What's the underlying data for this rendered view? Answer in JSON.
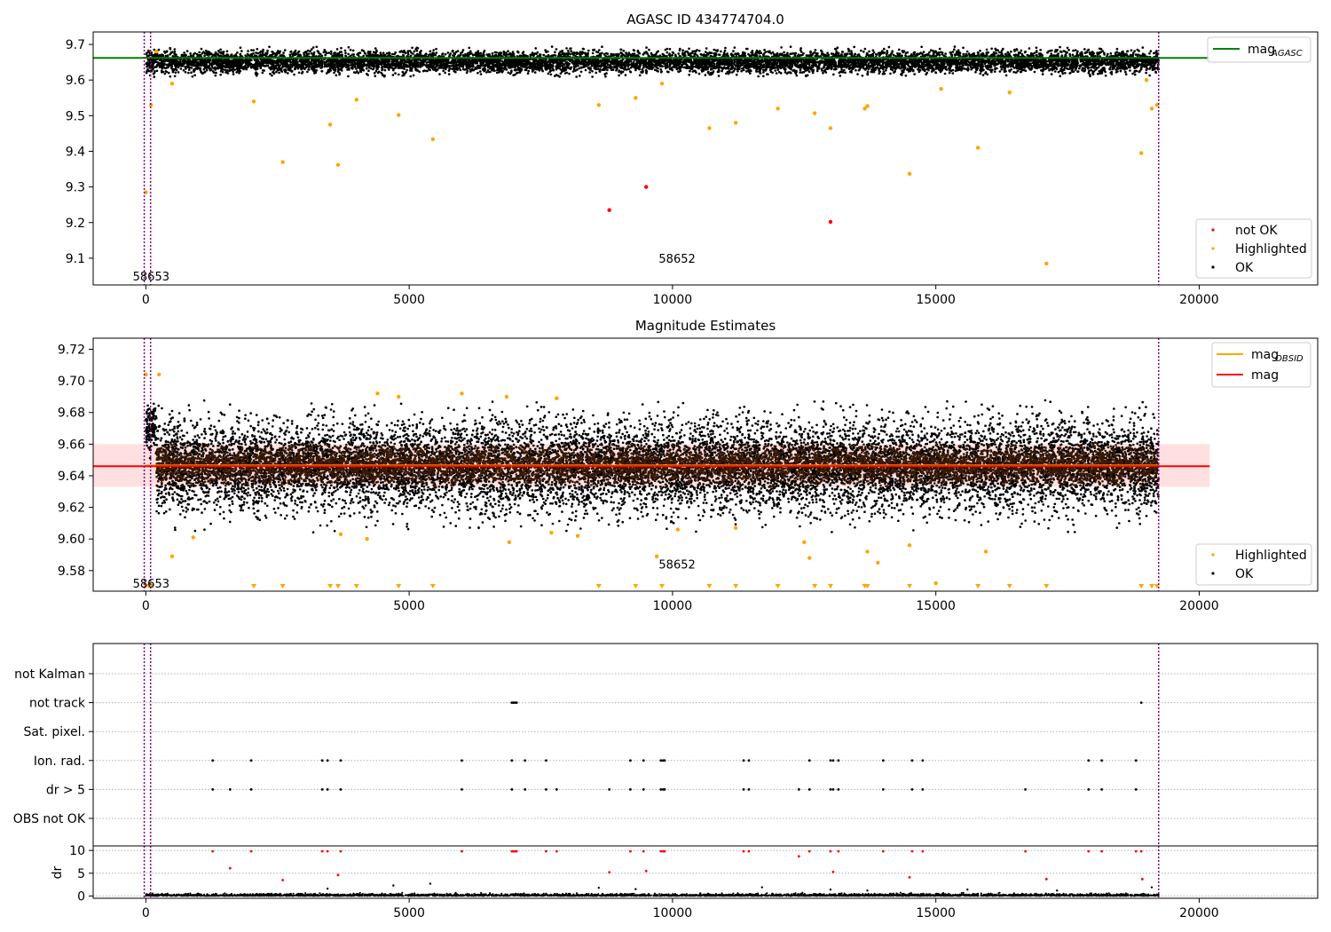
{
  "chart_data": [
    {
      "type": "scatter",
      "title": "AGASC ID 434774704.0",
      "xlim": [
        -1000,
        22250
      ],
      "ylim": [
        9.025,
        9.735
      ],
      "x_ticks": [
        0,
        5000,
        10000,
        15000,
        20000
      ],
      "y_ticks": [
        9.1,
        9.2,
        9.3,
        9.4,
        9.5,
        9.6,
        9.7
      ],
      "y_tick_decimals": 1,
      "vlines": [
        {
          "x": -30,
          "color": "#800080"
        },
        {
          "x": 90,
          "color": "#800080"
        },
        {
          "x": 19230,
          "color": "#800080"
        }
      ],
      "annotations": [
        {
          "text": "58653",
          "x": 50,
          "y": 9.05
        },
        {
          "text": "58652",
          "x": 9700,
          "y": 9.1
        }
      ],
      "reference_lines": [
        {
          "name": "mag",
          "subscript": "AGASC",
          "y": 9.662,
          "x_range": [
            -1000,
            20200
          ],
          "color": "#008000"
        }
      ],
      "band": null,
      "ok_band": {
        "x_range": [
          0,
          19230
        ],
        "y_range": [
          9.612,
          9.69
        ],
        "count": 9000,
        "color": "#000000"
      },
      "series": [
        {
          "name": "not OK",
          "color": "#ff0000",
          "points": [
            [
              8800,
              9.235
            ],
            [
              9500,
              9.3
            ],
            [
              13000,
              9.202
            ]
          ]
        },
        {
          "name": "Highlighted",
          "color": "#ffa500",
          "points": [
            [
              0,
              9.285
            ],
            [
              100,
              9.53
            ],
            [
              200,
              9.68
            ],
            [
              500,
              9.59
            ],
            [
              2050,
              9.54
            ],
            [
              2600,
              9.37
            ],
            [
              3500,
              9.475
            ],
            [
              3650,
              9.362
            ],
            [
              4000,
              9.545
            ],
            [
              4800,
              9.502
            ],
            [
              5450,
              9.434
            ],
            [
              8600,
              9.53
            ],
            [
              9300,
              9.55
            ],
            [
              9800,
              9.59
            ],
            [
              10700,
              9.465
            ],
            [
              11200,
              9.48
            ],
            [
              12000,
              9.52
            ],
            [
              12700,
              9.507
            ],
            [
              13000,
              9.465
            ],
            [
              13650,
              9.52
            ],
            [
              13700,
              9.527
            ],
            [
              14500,
              9.337
            ],
            [
              15100,
              9.575
            ],
            [
              15800,
              9.41
            ],
            [
              16400,
              9.565
            ],
            [
              17100,
              9.085
            ],
            [
              18900,
              9.395
            ],
            [
              19000,
              9.6
            ],
            [
              19100,
              9.52
            ],
            [
              19200,
              9.53
            ]
          ]
        },
        {
          "name": "OK",
          "color": "#000000",
          "points": []
        }
      ],
      "legend": {
        "placement": "lower-right",
        "entries": [
          "not OK",
          "Highlighted",
          "OK"
        ]
      },
      "legend_lines": {
        "placement": "upper-right"
      }
    },
    {
      "type": "scatter",
      "title": "Magnitude Estimates",
      "xlim": [
        -1000,
        22250
      ],
      "ylim": [
        9.567,
        9.727
      ],
      "x_ticks": [
        0,
        5000,
        10000,
        15000,
        20000
      ],
      "y_ticks": [
        9.58,
        9.6,
        9.62,
        9.64,
        9.66,
        9.68,
        9.7,
        9.72
      ],
      "y_tick_decimals": 2,
      "vlines": [
        {
          "x": -30,
          "color": "#800080"
        },
        {
          "x": 90,
          "color": "#800080"
        },
        {
          "x": 19230,
          "color": "#800080"
        }
      ],
      "annotations": [
        {
          "text": "58653",
          "x": 50,
          "y": 9.572
        },
        {
          "text": "58652",
          "x": 9700,
          "y": 9.584
        }
      ],
      "reference_lines": [
        {
          "name": "mag",
          "subscript": "OBSID",
          "y": 9.6465,
          "x_range": [
            0,
            19230
          ],
          "color": "#ffa500"
        },
        {
          "name": "mag",
          "subscript": "",
          "y": 9.646,
          "x_range": [
            -1000,
            20200
          ],
          "color": "#ff0000"
        }
      ],
      "band": {
        "y_range": [
          9.633,
          9.66
        ],
        "x_range": [
          -1000,
          20200
        ],
        "color": "#ff0000"
      },
      "ok_band": {
        "x_range": [
          0,
          19230
        ],
        "y_range": [
          9.608,
          9.684
        ],
        "count": 12000,
        "color": "#000000"
      },
      "series": [
        {
          "name": "Highlighted",
          "color": "#ffa500",
          "points": [
            [
              0,
              9.704
            ],
            [
              250,
              9.704
            ],
            [
              4400,
              9.692
            ],
            [
              4800,
              9.69
            ],
            [
              6000,
              9.692
            ],
            [
              6850,
              9.69
            ],
            [
              7800,
              9.689
            ],
            [
              500,
              9.589
            ],
            [
              900,
              9.601
            ],
            [
              4200,
              9.6
            ],
            [
              6900,
              9.598
            ],
            [
              7700,
              9.604
            ],
            [
              8200,
              9.602
            ],
            [
              9700,
              9.589
            ],
            [
              12500,
              9.598
            ],
            [
              12600,
              9.588
            ],
            [
              13700,
              9.592
            ],
            [
              13900,
              9.585
            ],
            [
              15000,
              9.572
            ],
            [
              15950,
              9.592
            ],
            [
              14500,
              9.596
            ],
            [
              11200,
              9.607
            ],
            [
              10100,
              9.606
            ],
            [
              3700,
              9.603
            ]
          ]
        },
        {
          "name": "OK",
          "color": "#000000",
          "points": []
        }
      ],
      "lower_limit_markers": {
        "color": "#ffa500",
        "x": [
          0,
          60,
          120,
          2050,
          2600,
          3500,
          3650,
          4000,
          4800,
          5450,
          8600,
          9300,
          9800,
          10700,
          11200,
          12000,
          12700,
          13000,
          13650,
          13700,
          14500,
          15800,
          16400,
          17100,
          18900,
          19100,
          19200
        ]
      },
      "legend": {
        "placement": "lower-right",
        "entries": [
          "Highlighted",
          "OK"
        ]
      },
      "legend_lines": {
        "placement": "upper-right"
      }
    },
    {
      "type": "scatter",
      "title": "",
      "xlim": [
        -1000,
        22250
      ],
      "flag_rows": [
        "not Kalman",
        "not track",
        "Sat. pixel.",
        "Ion. rad.",
        "dr > 5",
        "OBS not OK"
      ],
      "flags": {
        "not Kalman": [],
        "not track": [
          6950,
          6980,
          7010,
          7040,
          18900
        ],
        "Sat. pixel.": [],
        "Ion. rad.": [
          1270,
          2000,
          3350,
          3450,
          3700,
          6000,
          6950,
          7200,
          7600,
          9200,
          9450,
          9780,
          9820,
          9850,
          11350,
          11450,
          12600,
          13000,
          13050,
          13150,
          14000,
          14550,
          14750,
          17900,
          18150,
          18800
        ],
        "dr > 5": [
          1270,
          1600,
          2000,
          3350,
          3450,
          3700,
          6000,
          6950,
          7200,
          7600,
          7800,
          8800,
          9200,
          9450,
          9780,
          9820,
          9850,
          11350,
          11450,
          12400,
          12600,
          13000,
          13050,
          13150,
          14000,
          14550,
          14750,
          16700,
          17900,
          18150,
          18800
        ],
        "OBS not OK": []
      },
      "dr_panel": {
        "ylabel": "dr",
        "ylim": [
          -0.5,
          11
        ],
        "y_ticks": [
          0,
          5,
          10
        ],
        "outliers_red": [
          [
            1270,
            9.8
          ],
          [
            1600,
            6.1
          ],
          [
            2000,
            9.8
          ],
          [
            2600,
            3.5
          ],
          [
            3350,
            9.8
          ],
          [
            3450,
            9.8
          ],
          [
            3650,
            4.6
          ],
          [
            3700,
            9.8
          ],
          [
            6000,
            9.8
          ],
          [
            6950,
            9.8
          ],
          [
            6980,
            9.8
          ],
          [
            7010,
            9.8
          ],
          [
            7040,
            9.8
          ],
          [
            7600,
            9.8
          ],
          [
            7800,
            9.8
          ],
          [
            8800,
            5.2
          ],
          [
            9200,
            9.8
          ],
          [
            9450,
            9.8
          ],
          [
            9500,
            5.5
          ],
          [
            9780,
            9.8
          ],
          [
            9820,
            9.8
          ],
          [
            9850,
            9.8
          ],
          [
            11350,
            9.8
          ],
          [
            11450,
            9.8
          ],
          [
            12400,
            8.7
          ],
          [
            12600,
            9.8
          ],
          [
            13000,
            9.8
          ],
          [
            13050,
            5.3
          ],
          [
            13150,
            9.8
          ],
          [
            14000,
            9.8
          ],
          [
            14500,
            4.1
          ],
          [
            14550,
            9.8
          ],
          [
            14750,
            9.8
          ],
          [
            16700,
            9.8
          ],
          [
            17100,
            3.7
          ],
          [
            17900,
            9.8
          ],
          [
            18150,
            9.8
          ],
          [
            18800,
            9.8
          ],
          [
            18900,
            9.8
          ],
          [
            18920,
            3.7
          ]
        ],
        "outliers_black": [
          [
            3450,
            1.6
          ],
          [
            4700,
            2.3
          ],
          [
            5400,
            2.7
          ],
          [
            8600,
            1.8
          ],
          [
            9300,
            1.5
          ],
          [
            11700,
            1.9
          ],
          [
            13000,
            1.4
          ],
          [
            13700,
            1.2
          ],
          [
            15600,
            1.4
          ],
          [
            17300,
            1.2
          ],
          [
            19100,
            1.9
          ]
        ],
        "baseline": {
          "x_range": [
            0,
            19230
          ],
          "y_range": [
            0,
            0.8
          ],
          "count": 4000
        }
      },
      "x_ticks": [
        0,
        5000,
        10000,
        15000,
        20000
      ],
      "vlines": [
        {
          "x": -30,
          "color": "#800080"
        },
        {
          "x": 90,
          "color": "#800080"
        },
        {
          "x": 19230,
          "color": "#800080"
        }
      ]
    }
  ]
}
